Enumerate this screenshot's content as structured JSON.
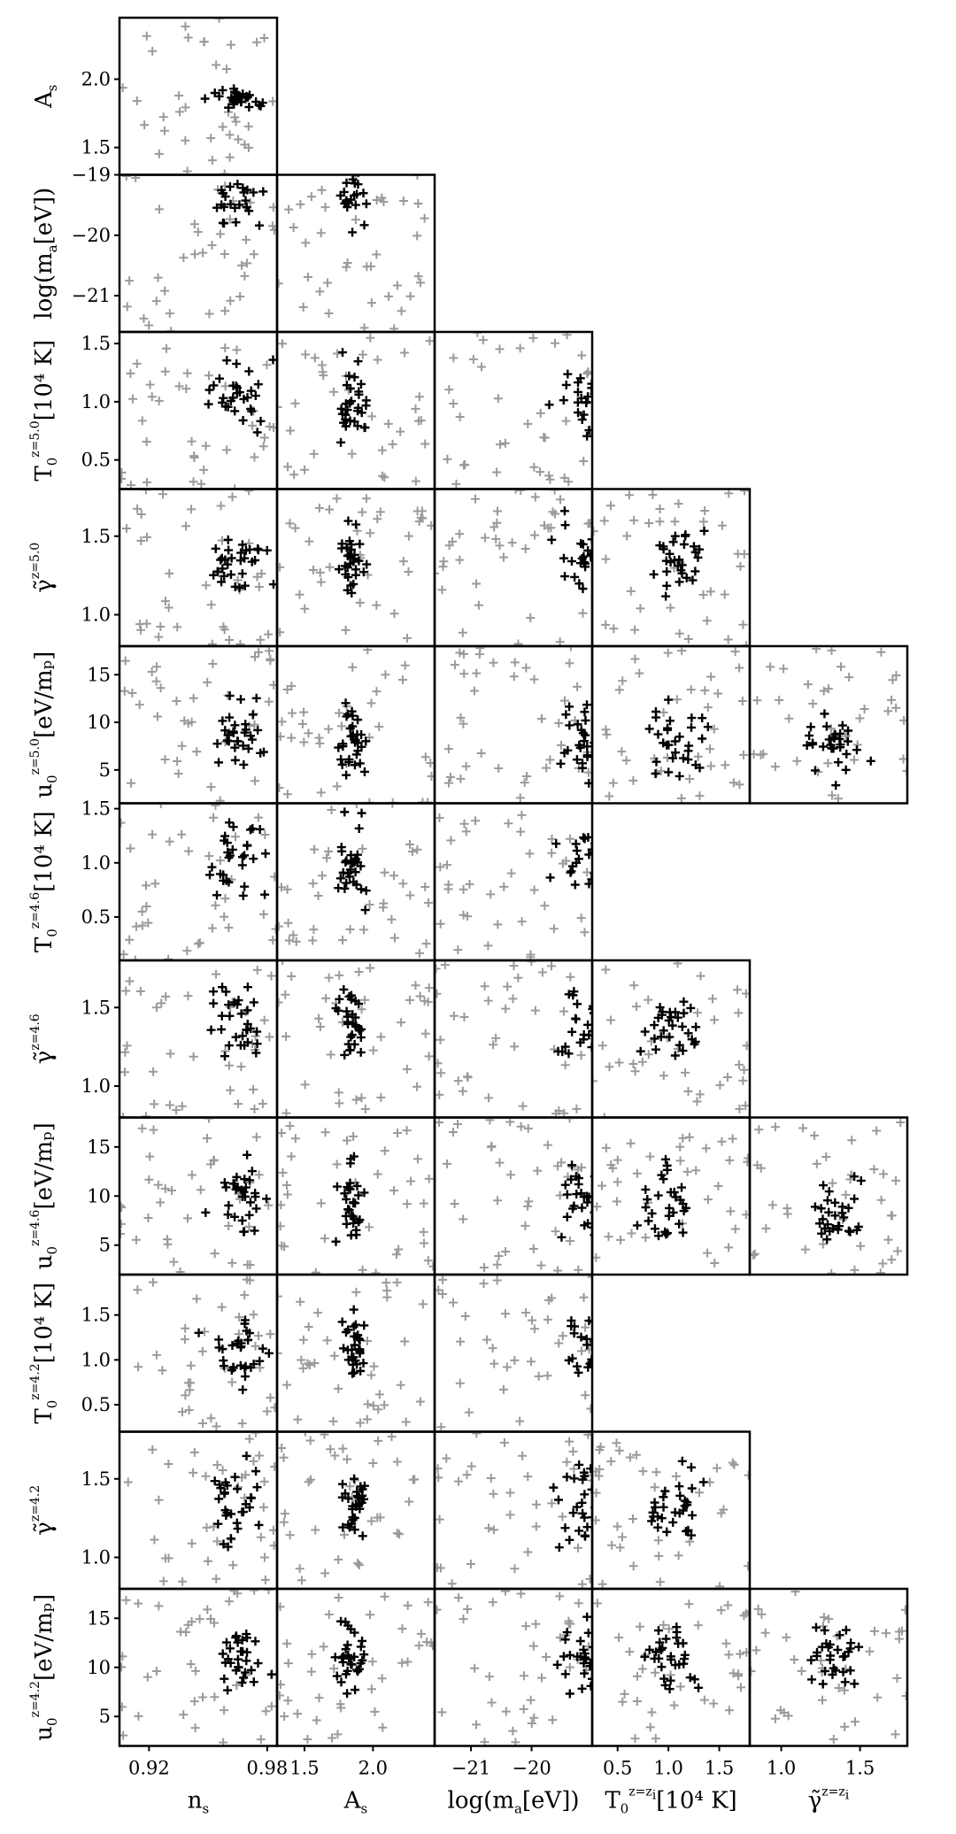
{
  "chart_data": {
    "type": "scatter",
    "layout": "lower-triangular corner plot",
    "grid": false,
    "marker": "+",
    "series": [
      {
        "role": "background samples",
        "color": "#9a9a9a"
      },
      {
        "role": "selected samples",
        "color": "#000000"
      }
    ],
    "columns": [
      {
        "key": "ns",
        "label": "n",
        "label_sub": "s",
        "range": [
          0.905,
          0.985
        ],
        "ticks": [
          0.92,
          0.98
        ],
        "tick_labels": [
          "0.92",
          "0.98"
        ]
      },
      {
        "key": "As",
        "label": "A",
        "label_sub": "s",
        "range": [
          1.3,
          2.45
        ],
        "ticks": [
          1.5,
          2.0
        ],
        "tick_labels": [
          "1.5",
          "2.0"
        ]
      },
      {
        "key": "logma",
        "label": "log(m",
        "label_sub": "a",
        "label_tail": "[eV])",
        "range": [
          -21.6,
          -19.0
        ],
        "ticks": [
          -21,
          -20
        ],
        "tick_labels": [
          "−21",
          "−20"
        ]
      },
      {
        "key": "T0zi",
        "label": "T",
        "label_sub": "0",
        "label_sup": "z=z",
        "label_sup_sub": "i",
        "label_tail": "[10⁴ K]",
        "range": [
          0.25,
          1.8
        ],
        "ticks": [
          0.5,
          1.0,
          1.5
        ],
        "tick_labels": [
          "0.5",
          "1.0",
          "1.5"
        ]
      },
      {
        "key": "gzi",
        "label": "γ̃",
        "label_sup": "z=z",
        "label_sup_sub": "i",
        "range": [
          0.8,
          1.8
        ],
        "ticks": [
          1.0,
          1.5
        ],
        "tick_labels": [
          "1.0",
          "1.5"
        ]
      }
    ],
    "rows": [
      {
        "label": "A",
        "label_sub": "s",
        "range": [
          1.3,
          2.45
        ],
        "ticks": [
          1.5,
          2.0
        ],
        "tick_labels": [
          "1.5",
          "2.0"
        ]
      },
      {
        "label": "log(m",
        "label_sub": "a",
        "label_tail": "[eV])",
        "range": [
          -21.6,
          -19.0
        ],
        "ticks": [
          -21,
          -20,
          -19
        ],
        "tick_labels": [
          "−21",
          "−20",
          "−19"
        ]
      },
      {
        "label": "T",
        "label_sub": "0",
        "label_sup": "z=5.0",
        "label_tail": "[10⁴ K]",
        "range": [
          0.25,
          1.6
        ],
        "ticks": [
          0.5,
          1.0,
          1.5
        ],
        "tick_labels": [
          "0.5",
          "1.0",
          "1.5"
        ]
      },
      {
        "label": "γ̃",
        "label_sup": "z=5.0",
        "range": [
          0.8,
          1.8
        ],
        "ticks": [
          1.0,
          1.5
        ],
        "tick_labels": [
          "1.0",
          "1.5"
        ]
      },
      {
        "label": "u",
        "label_sub": "0",
        "label_sup": "z=5.0",
        "label_tail": "[eV/mₚ]",
        "range": [
          1.5,
          18.0
        ],
        "ticks": [
          5,
          10,
          15
        ],
        "tick_labels": [
          "5",
          "10",
          "15"
        ]
      },
      {
        "label": "T",
        "label_sub": "0",
        "label_sup": "z=4.6",
        "label_tail": "[10⁴ K]",
        "range": [
          0.1,
          1.55
        ],
        "ticks": [
          0.5,
          1.0,
          1.5
        ],
        "tick_labels": [
          "0.5",
          "1.0",
          "1.5"
        ]
      },
      {
        "label": "γ̃",
        "label_sup": "z=4.6",
        "range": [
          0.8,
          1.8
        ],
        "ticks": [
          1.0,
          1.5
        ],
        "tick_labels": [
          "1.0",
          "1.5"
        ]
      },
      {
        "label": "u",
        "label_sub": "0",
        "label_sup": "z=4.6",
        "label_tail": "[eV/mₚ]",
        "range": [
          2.0,
          18.0
        ],
        "ticks": [
          5,
          10,
          15
        ],
        "tick_labels": [
          "5",
          "10",
          "15"
        ]
      },
      {
        "label": "T",
        "label_sub": "0",
        "label_sup": "z=4.2",
        "label_tail": "[10⁴ K]",
        "range": [
          0.2,
          1.95
        ],
        "ticks": [
          0.5,
          1.0,
          1.5
        ],
        "tick_labels": [
          "0.5",
          "1.0",
          "1.5"
        ]
      },
      {
        "label": "γ̃",
        "label_sup": "z=4.2",
        "range": [
          0.8,
          1.8
        ],
        "ticks": [
          1.0,
          1.5
        ],
        "tick_labels": [
          "1.0",
          "1.5"
        ]
      },
      {
        "label": "u",
        "label_sub": "0",
        "label_sup": "z=4.2",
        "label_tail": "[eV/mₚ]",
        "range": [
          2.0,
          18.0
        ],
        "ticks": [
          5,
          10,
          15
        ],
        "tick_labels": [
          "5",
          "10",
          "15"
        ]
      }
    ],
    "panels": [
      {
        "row": 0,
        "cols": 1
      },
      {
        "row": 1,
        "cols": 2
      },
      {
        "row": 2,
        "cols": 3
      },
      {
        "row": 3,
        "cols": 4
      },
      {
        "row": 4,
        "cols": 5
      },
      {
        "row": 5,
        "cols": 3
      },
      {
        "row": 6,
        "cols": 4
      },
      {
        "row": 7,
        "cols": 5
      },
      {
        "row": 8,
        "cols": 3
      },
      {
        "row": 9,
        "cols": 4
      },
      {
        "row": 10,
        "cols": 5
      }
    ],
    "cluster_centers": {
      "ns": 0.965,
      "As": 1.85,
      "logma": -19.1,
      "T0zi": 1.05,
      "gzi": 1.35
    },
    "row_cluster_centers": [
      1.85,
      -19.2,
      1.05,
      1.35,
      8.0,
      1.0,
      1.4,
      9.5,
      1.15,
      1.35,
      11.0
    ]
  }
}
